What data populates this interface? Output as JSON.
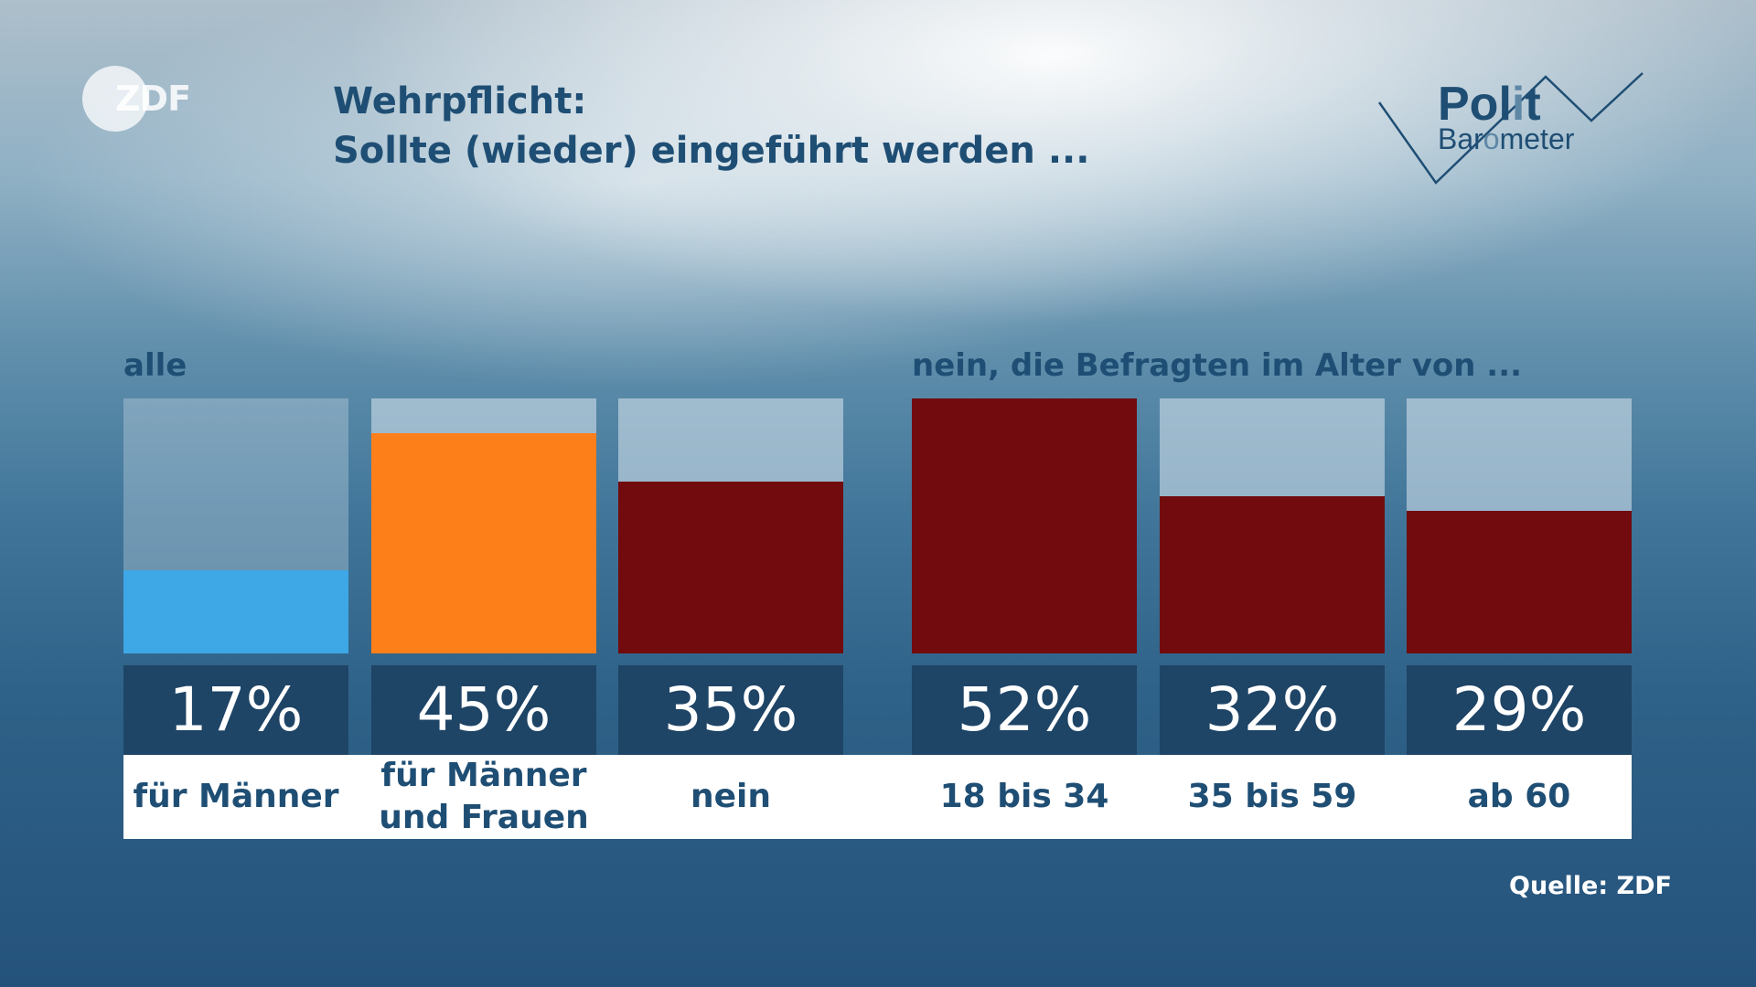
{
  "brand": {
    "zdf_logo_text": "ZDF",
    "politbarometer_line1_dark": "Pol",
    "politbarometer_line1_light": "i",
    "politbarometer_line1_end": "t",
    "politbarometer_line2_a": "Bar",
    "politbarometer_line2_light": "o",
    "politbarometer_line2_b": "meter"
  },
  "chart_data": {
    "type": "bar",
    "title": "Wehrpflicht:",
    "subtitle": "Sollte (wieder) eingeführt werden ...",
    "group_labels": [
      "alle",
      "nein, die Befragten im Alter von ..."
    ],
    "categories": [
      "für Männer",
      "für Männer\nund Frauen",
      "nein",
      "18 bis 34",
      "35 bis 59",
      "ab 60"
    ],
    "values": [
      17,
      45,
      35,
      52,
      32,
      29
    ],
    "value_labels": [
      "17%",
      "45%",
      "35%",
      "52%",
      "32%",
      "29%"
    ],
    "groups": [
      0,
      0,
      0,
      1,
      1,
      1
    ],
    "colors": [
      "#3ea7e6",
      "#fd7f1a",
      "#710b0e",
      "#710b0e",
      "#710b0e",
      "#710b0e"
    ],
    "ylim": [
      0,
      52
    ],
    "source": "Quelle: ZDF"
  }
}
